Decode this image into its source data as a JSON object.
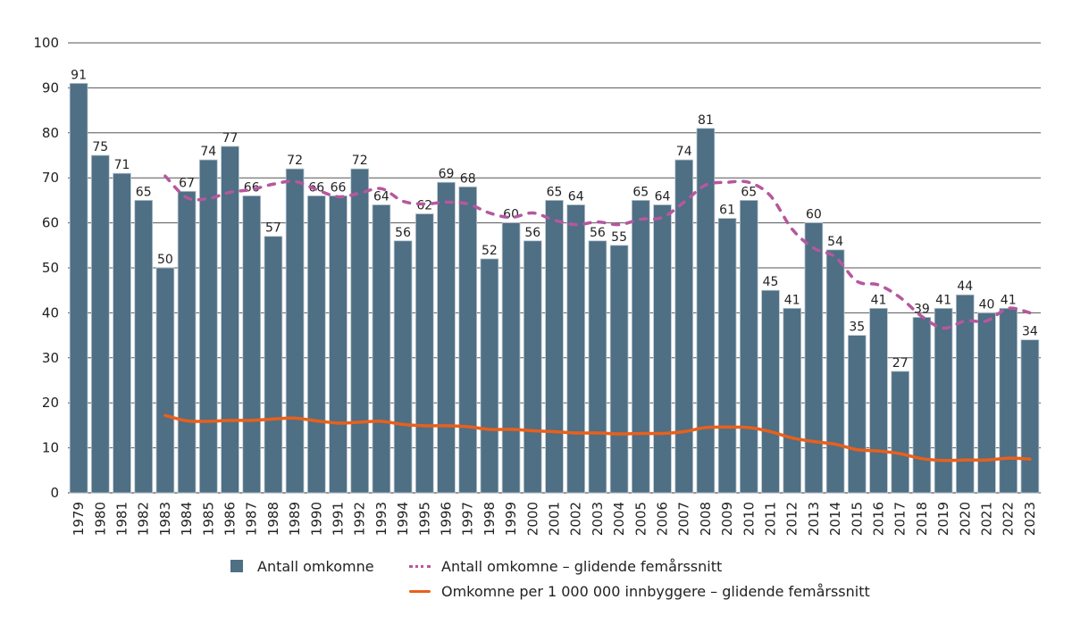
{
  "chart_data": {
    "type": "bar",
    "title": "",
    "xlabel": "",
    "ylabel": "",
    "ylim": [
      0,
      100
    ],
    "yticks": [
      0,
      10,
      20,
      30,
      40,
      50,
      60,
      70,
      80,
      90,
      100
    ],
    "grid": true,
    "legend_position": "bottom",
    "categories": [
      "1979",
      "1980",
      "1981",
      "1982",
      "1983",
      "1984",
      "1985",
      "1986",
      "1987",
      "1988",
      "1989",
      "1990",
      "1991",
      "1992",
      "1993",
      "1994",
      "1995",
      "1996",
      "1997",
      "1998",
      "1999",
      "2000",
      "2001",
      "2002",
      "2003",
      "2004",
      "2005",
      "2006",
      "2007",
      "2008",
      "2009",
      "2010",
      "2011",
      "2012",
      "2013",
      "2014",
      "2015",
      "2016",
      "2017",
      "2018",
      "2019",
      "2020",
      "2021",
      "2022",
      "2023"
    ],
    "series": [
      {
        "name": "Antall omkomne",
        "type": "bar",
        "color": "#4e6f84",
        "values": [
          91,
          75,
          71,
          65,
          50,
          67,
          74,
          77,
          66,
          57,
          72,
          66,
          66,
          72,
          64,
          56,
          62,
          69,
          68,
          52,
          60,
          56,
          65,
          64,
          56,
          55,
          65,
          64,
          74,
          81,
          61,
          65,
          45,
          41,
          60,
          54,
          35,
          41,
          27,
          39,
          41,
          44,
          40,
          41,
          34
        ]
      },
      {
        "name": "Antall omkomne – glidende femårssnitt",
        "type": "line",
        "style": "dashed",
        "color": "#b5589e",
        "start_category": "1983",
        "values": [
          70.4,
          65.6,
          65.4,
          66.8,
          67.4,
          68.6,
          69.2,
          67.4,
          65.8,
          66.6,
          67.6,
          64.8,
          64.2,
          64.6,
          64.2,
          62.2,
          61.2,
          62.2,
          60.6,
          59.6,
          60.2,
          59.6,
          60.8,
          61.2,
          64.6,
          68.4,
          69.0,
          69.0,
          66.0,
          58.6,
          54.4,
          52.4,
          47.0,
          46.2,
          43.4,
          39.2,
          36.6,
          38.2,
          38.2,
          41.0,
          40.0
        ]
      },
      {
        "name": "Omkomne per 1 000 000 innbyggere – glidende femårssnitt",
        "type": "line",
        "style": "solid",
        "color": "#e8601c",
        "start_category": "1983",
        "values": [
          17.2,
          16.0,
          15.9,
          16.1,
          16.1,
          16.4,
          16.6,
          16.0,
          15.5,
          15.7,
          15.9,
          15.2,
          14.9,
          14.9,
          14.7,
          14.1,
          14.1,
          13.8,
          13.6,
          13.3,
          13.3,
          13.1,
          13.2,
          13.2,
          13.6,
          14.5,
          14.6,
          14.5,
          13.6,
          12.2,
          11.4,
          10.8,
          9.6,
          9.3,
          8.7,
          7.6,
          7.2,
          7.3,
          7.3,
          7.7,
          7.5
        ]
      }
    ],
    "legend": [
      {
        "label": "Antall omkomne",
        "swatch": "bar"
      },
      {
        "label": "Antall omkomne – glidende femårssnitt",
        "swatch": "dashed"
      },
      {
        "label": "Omkomne per 1 000 000 innbyggere – glidende femårssnitt",
        "swatch": "line"
      }
    ]
  }
}
